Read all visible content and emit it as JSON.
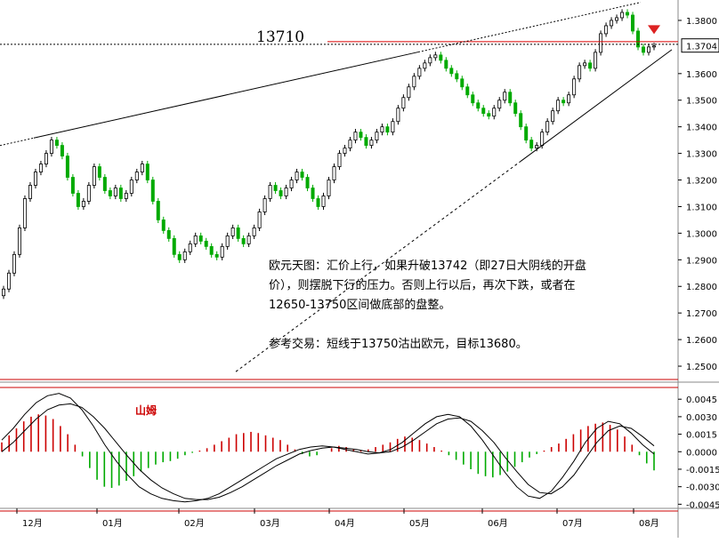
{
  "chart_data": [
    {
      "type": "candlestick",
      "title": "",
      "instrument_note": "欧元天图",
      "y_axis_labels": [
        "1.3800",
        "1.3704",
        "1.3600",
        "1.3500",
        "1.3400",
        "1.3300",
        "1.3200",
        "1.3100",
        "1.3000",
        "1.2900",
        "1.2800",
        "1.2700",
        "1.2600",
        "1.2500"
      ],
      "ylim": [
        1.245,
        1.386
      ],
      "current_price": "1.3704",
      "level_label": "13710",
      "level_value": 1.371,
      "red_level_value": 1.372,
      "x_axis_labels": [
        "12月",
        "01月",
        "02月",
        "03月",
        "04月",
        "05月",
        "06月",
        "07月",
        "08月"
      ],
      "candle_colors": {
        "up": "#000000",
        "down": "#00aa00"
      },
      "annotation": {
        "lines": [
          "欧元天图：汇价上行，如果升破13742（即27日大阴线的开盘",
          "价），则摆脱下行的压力。否则上行以后，再次下跌，或者在",
          "12650-13750区间做底部的盘整。",
          "",
          "参考交易：短线于13750沽出欧元，目标13680。"
        ]
      },
      "trendlines": [
        {
          "name": "upper-resistance",
          "style": "solid-then-dashed"
        },
        {
          "name": "lower-support",
          "style": "dashed-then-solid"
        }
      ],
      "candles_close": [
        1.279,
        1.285,
        1.292,
        1.302,
        1.313,
        1.318,
        1.323,
        1.326,
        1.33,
        1.335,
        1.333,
        1.329,
        1.321,
        1.315,
        1.31,
        1.312,
        1.318,
        1.325,
        1.321,
        1.316,
        1.314,
        1.317,
        1.313,
        1.315,
        1.32,
        1.323,
        1.326,
        1.32,
        1.312,
        1.305,
        1.301,
        1.298,
        1.292,
        1.29,
        1.293,
        1.296,
        1.299,
        1.297,
        1.295,
        1.292,
        1.291,
        1.295,
        1.299,
        1.302,
        1.298,
        1.296,
        1.299,
        1.302,
        1.308,
        1.313,
        1.318,
        1.316,
        1.314,
        1.317,
        1.32,
        1.323,
        1.321,
        1.317,
        1.313,
        1.31,
        1.314,
        1.32,
        1.325,
        1.33,
        1.332,
        1.335,
        1.338,
        1.336,
        1.333,
        1.335,
        1.338,
        1.34,
        1.338,
        1.342,
        1.347,
        1.351,
        1.355,
        1.359,
        1.362,
        1.364,
        1.366,
        1.367,
        1.365,
        1.362,
        1.36,
        1.358,
        1.355,
        1.352,
        1.349,
        1.347,
        1.345,
        1.344,
        1.347,
        1.35,
        1.353,
        1.349,
        1.345,
        1.34,
        1.335,
        1.332,
        1.333,
        1.338,
        1.342,
        1.346,
        1.35,
        1.349,
        1.352,
        1.358,
        1.363,
        1.364,
        1.362,
        1.368,
        1.375,
        1.378,
        1.38,
        1.381,
        1.383,
        1.382,
        1.376,
        1.37,
        1.368,
        1.37,
        1.3704
      ]
    },
    {
      "type": "macd",
      "label": "山姆",
      "y_axis_labels": [
        "0.0045",
        "0.0030",
        "0.0015",
        "0.0000",
        "-0.0015",
        "-0.0030",
        "-0.0045"
      ],
      "ylim": [
        -0.0047,
        0.0052
      ],
      "x_axis_labels": [
        "12月",
        "01月",
        "02月",
        "03月",
        "04月",
        "05月",
        "06月",
        "07月",
        "08月"
      ],
      "histogram_colors": {
        "positive": "#cc0000",
        "negative": "#00aa00"
      },
      "histogram": [
        0.0008,
        0.0014,
        0.002,
        0.0026,
        0.003,
        0.0032,
        0.0031,
        0.0028,
        0.0022,
        0.0015,
        0.0006,
        -0.0004,
        -0.0014,
        -0.0024,
        -0.003,
        -0.0031,
        -0.0029,
        -0.0025,
        -0.0021,
        -0.0017,
        -0.0014,
        -0.0011,
        -0.0009,
        -0.0008,
        -0.0006,
        -0.0003,
        -0.0001,
        0.0001,
        0.0003,
        0.0006,
        0.0009,
        0.0012,
        0.0015,
        0.0016,
        0.0017,
        0.0016,
        0.0014,
        0.0012,
        0.001,
        0.0006,
        0.0002,
        -0.0002,
        -0.0004,
        -0.0003,
        0.0,
        0.0003,
        0.0005,
        0.0004,
        0.0002,
        0.0001,
        0.0002,
        0.0004,
        0.0006,
        0.0008,
        0.0011,
        0.0013,
        0.0012,
        0.001,
        0.0007,
        0.0004,
        0.0001,
        -0.0003,
        -0.0007,
        -0.0011,
        -0.0015,
        -0.0019,
        -0.0021,
        -0.0022,
        -0.002,
        -0.0017,
        -0.0013,
        -0.0009,
        -0.0005,
        -0.0002,
        0.0001,
        0.0004,
        0.0007,
        0.0011,
        0.0015,
        0.0019,
        0.0022,
        0.0024,
        0.0025,
        0.0023,
        0.0019,
        0.0013,
        0.0006,
        -0.0003,
        -0.001,
        -0.0016
      ],
      "macd_line": [
        0.001,
        0.002,
        0.0032,
        0.0042,
        0.0048,
        0.005,
        0.0046,
        0.0036,
        0.0022,
        0.0006,
        -0.0008,
        -0.002,
        -0.003,
        -0.0036,
        -0.004,
        -0.0042,
        -0.0043,
        -0.0042,
        -0.004,
        -0.0036,
        -0.003,
        -0.0024,
        -0.0018,
        -0.0012,
        -0.0006,
        -0.0002,
        0.0002,
        0.0004,
        0.0005,
        0.0004,
        0.0002,
        0.0,
        -0.0002,
        -0.0001,
        0.0002,
        0.0008,
        0.0016,
        0.0024,
        0.003,
        0.0032,
        0.003,
        0.0022,
        0.001,
        -0.0004,
        -0.0018,
        -0.003,
        -0.0038,
        -0.004,
        -0.0034,
        -0.0022,
        -0.0008,
        0.0008,
        0.002,
        0.0026,
        0.0024,
        0.0016,
        0.0006,
        -0.0002
      ],
      "signal_line": [
        0.0,
        0.0008,
        0.0018,
        0.0028,
        0.0036,
        0.004,
        0.0041,
        0.0038,
        0.003,
        0.002,
        0.0008,
        -0.0004,
        -0.0015,
        -0.0024,
        -0.0031,
        -0.0036,
        -0.004,
        -0.0041,
        -0.0041,
        -0.0039,
        -0.0035,
        -0.003,
        -0.0024,
        -0.0018,
        -0.0012,
        -0.0007,
        -0.0002,
        0.0001,
        0.0003,
        0.0004,
        0.0003,
        0.0002,
        0.0,
        -0.0001,
        0.0,
        0.0004,
        0.001,
        0.0017,
        0.0024,
        0.0028,
        0.0029,
        0.0026,
        0.0018,
        0.0008,
        -0.0005,
        -0.0017,
        -0.0028,
        -0.0035,
        -0.0036,
        -0.003,
        -0.002,
        -0.0006,
        0.0008,
        0.0018,
        0.0022,
        0.002,
        0.0013,
        0.0005
      ]
    }
  ]
}
